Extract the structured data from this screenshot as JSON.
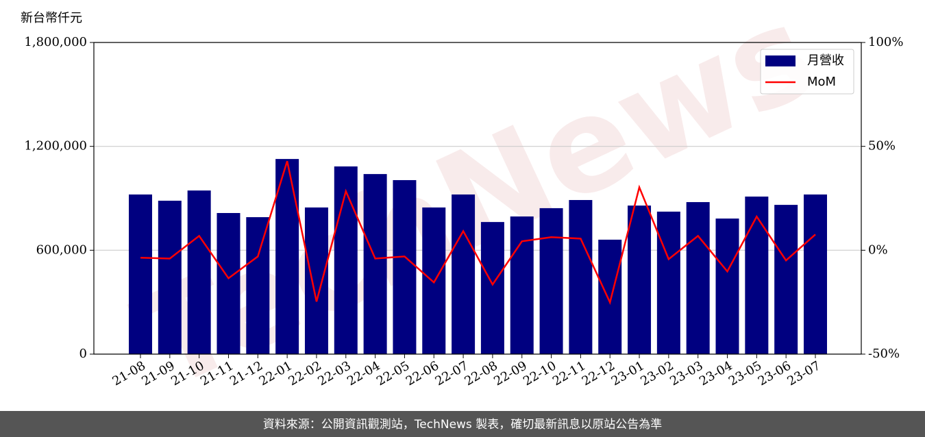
{
  "chart_data": {
    "type": "bar",
    "ylabel": "新台幣仟元",
    "watermark": "TechNews",
    "footer": "資料來源：公開資訊觀測站，TechNews 製表，確切最新訊息以原站公告為準",
    "categories": [
      "21-08",
      "21-09",
      "21-10",
      "21-11",
      "21-12",
      "22-01",
      "22-02",
      "22-03",
      "22-04",
      "22-05",
      "22-06",
      "22-07",
      "22-08",
      "22-09",
      "22-10",
      "22-11",
      "22-12",
      "23-01",
      "23-02",
      "23-03",
      "23-04",
      "23-05",
      "23-06",
      "23-07"
    ],
    "series": [
      {
        "name": "月營收",
        "type": "bar",
        "color": "#000080",
        "values": [
          922000,
          886000,
          945000,
          815000,
          791000,
          1127000,
          847000,
          1084000,
          1040000,
          1005000,
          847000,
          922000,
          763000,
          795000,
          843000,
          890000,
          661000,
          858000,
          823000,
          878000,
          783000,
          910000,
          862000,
          922000
        ]
      },
      {
        "name": "MoM",
        "type": "line",
        "axis": "y2",
        "color": "#ff0000",
        "values": [
          -3.6,
          -4.0,
          6.9,
          -13.5,
          -3.0,
          42.9,
          -24.7,
          28.4,
          -4.0,
          -3.0,
          -15.5,
          9.2,
          -16.5,
          4.3,
          6.3,
          5.6,
          -25.1,
          30.3,
          -4.3,
          6.9,
          -10.2,
          16.2,
          -4.9,
          7.6
        ]
      }
    ],
    "ylim": [
      0,
      1800000
    ],
    "yticks": [
      0,
      {
        "value": 600000,
        "label": "600,000"
      },
      {
        "value": 1200000,
        "label": "1,200,000"
      },
      {
        "value": 1800000,
        "label": "1,800,000"
      }
    ],
    "y2lim": [
      -50,
      100
    ],
    "y2ticks": [
      {
        "value": -50,
        "label": "-50%"
      },
      {
        "value": 0,
        "label": "0%"
      },
      {
        "value": 50,
        "label": "50%"
      },
      {
        "value": 100,
        "label": "100%"
      }
    ],
    "grid": true,
    "legend": "upper right"
  }
}
